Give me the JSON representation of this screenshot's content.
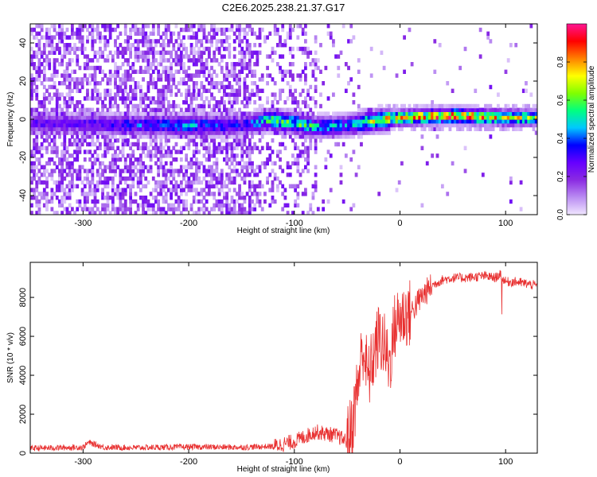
{
  "title": "C2E6.2025.238.21.37.G17",
  "chart_data": [
    {
      "type": "heatmap",
      "xlabel": "Height of straight line (km)",
      "ylabel": "Frequency (Hz)",
      "xlim": [
        -350,
        130
      ],
      "ylim": [
        -50,
        50
      ],
      "xticks": [
        -300,
        -200,
        -100,
        0,
        100
      ],
      "yticks": [
        -40,
        -20,
        0,
        20,
        40
      ],
      "colorbar": {
        "label": "Normalized spectral amplitude",
        "range": [
          0,
          1
        ],
        "ticks": [
          0.0,
          0.2,
          0.4,
          0.6,
          0.8
        ],
        "colormap": [
          "#f0e6ff",
          "#ba8cf2",
          "#8a2be2",
          "#6600ff",
          "#0000ff",
          "#00c8ff",
          "#00ff80",
          "#80ff00",
          "#ffff00",
          "#ff8000",
          "#ff0000",
          "#ff1493"
        ]
      },
      "ridge": {
        "description_points": [
          {
            "x": -300,
            "y": -2,
            "amp": 0.25
          },
          {
            "x": -250,
            "y": -3,
            "amp": 0.35
          },
          {
            "x": -200,
            "y": -3,
            "amp": 0.4
          },
          {
            "x": -150,
            "y": -3,
            "amp": 0.3
          },
          {
            "x": -125,
            "y": 0,
            "amp": 0.5
          },
          {
            "x": -100,
            "y": -2,
            "amp": 0.55
          },
          {
            "x": -80,
            "y": -4,
            "amp": 0.45
          },
          {
            "x": -50,
            "y": -3,
            "amp": 0.4
          },
          {
            "x": -30,
            "y": -1,
            "amp": 0.6
          },
          {
            "x": 0,
            "y": 1,
            "amp": 0.75
          },
          {
            "x": 50,
            "y": 2,
            "amp": 0.85
          },
          {
            "x": 100,
            "y": 1,
            "amp": 0.7
          },
          {
            "x": 130,
            "y": 1,
            "amp": 0.6
          }
        ]
      }
    },
    {
      "type": "line",
      "xlabel": "Height of straight line (km)",
      "ylabel": "SNR (10 * v/v)",
      "xlim": [
        -350,
        130
      ],
      "ylim": [
        0,
        9800
      ],
      "xticks": [
        -300,
        -200,
        -100,
        0,
        100
      ],
      "yticks": [
        0,
        2000,
        4000,
        6000,
        8000
      ],
      "color": "#e83030",
      "series": [
        {
          "x": [
            -350,
            -300,
            -295,
            -280,
            -250,
            -200,
            -150,
            -120,
            -100,
            -80,
            -60,
            -50,
            -45,
            -40,
            -35,
            -30,
            -25,
            -20,
            -15,
            -10,
            -5,
            0,
            10,
            20,
            30,
            40,
            50,
            60,
            80,
            90,
            95,
            100,
            110,
            120,
            130
          ],
          "values": [
            250,
            300,
            550,
            300,
            280,
            320,
            300,
            350,
            600,
            1100,
            900,
            600,
            1500,
            3500,
            5500,
            3800,
            5000,
            6000,
            5500,
            4500,
            6500,
            7000,
            7200,
            8000,
            8600,
            8900,
            9000,
            9000,
            9100,
            9000,
            9200,
            8800,
            8800,
            8700,
            8600
          ]
        }
      ]
    }
  ]
}
